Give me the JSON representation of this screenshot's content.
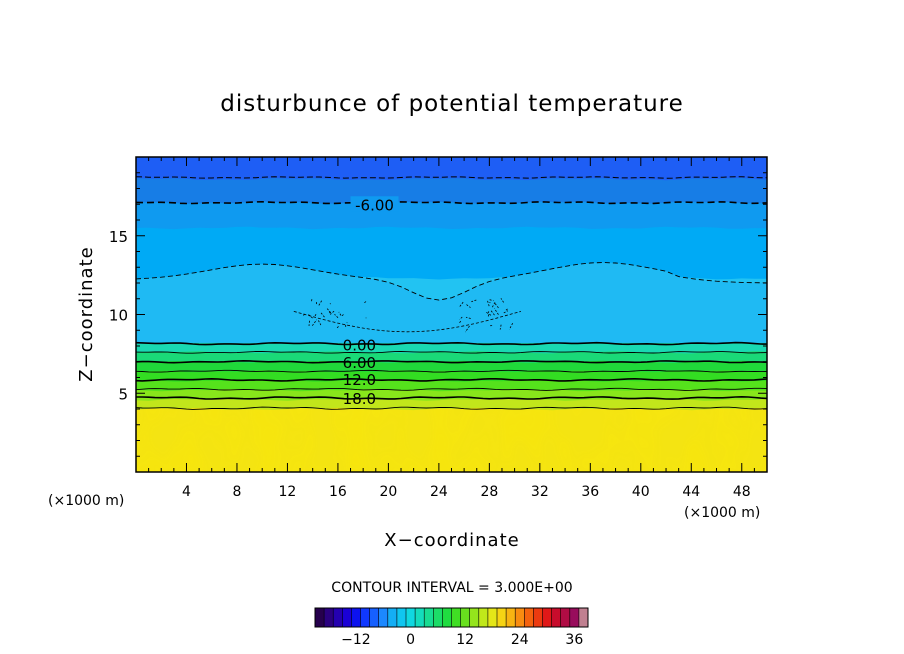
{
  "chart_data": {
    "type": "heatmap",
    "subtype": "filled-contour",
    "title": "disturbunce of potential temperature",
    "xlabel": "X−coordinate",
    "ylabel": "Z−coordinate",
    "x_unit_left": "(×1000 m)",
    "x_unit_right": "(×1000 m)",
    "xlim": [
      0,
      50
    ],
    "ylim": [
      0,
      20
    ],
    "x_ticks": [
      4,
      8,
      12,
      16,
      20,
      24,
      28,
      32,
      36,
      40,
      44,
      48
    ],
    "y_ticks": [
      5,
      10,
      15
    ],
    "contour_interval_text": "CONTOUR INTERVAL = 3.000E+00",
    "contour_interval": 3.0,
    "contour_labels": [
      {
        "text": "-6.00",
        "value": -6,
        "x": 18.9,
        "z": 17.0
      },
      {
        "text": "0.00",
        "value": 0,
        "x": 17.7,
        "z": 8.1
      },
      {
        "text": "6.00",
        "value": 6,
        "x": 17.7,
        "z": 7.0
      },
      {
        "text": "12.0",
        "value": 12,
        "x": 17.7,
        "z": 5.9
      },
      {
        "text": "18.0",
        "value": 18,
        "x": 17.7,
        "z": 4.7
      }
    ],
    "bands": [
      {
        "z_top": 20.0,
        "z_bottom": 18.6,
        "value": -9,
        "color": "#1e5ef5"
      },
      {
        "z_top": 18.6,
        "z_bottom": 17.1,
        "value": -7.5,
        "color": "#177de6"
      },
      {
        "z_top": 17.1,
        "z_bottom": 15.5,
        "value": -6,
        "color": "#0f9af0"
      },
      {
        "z_top": 15.5,
        "z_bottom": 12.3,
        "value": -4.5,
        "color": "#00aaf5"
      },
      {
        "z_top": 12.3,
        "z_bottom": 8.2,
        "value": -1.5,
        "color": "#22c3f2"
      },
      {
        "z_top": 8.2,
        "z_bottom": 7.6,
        "value": 1.5,
        "color": "#19d9b2"
      },
      {
        "z_top": 7.6,
        "z_bottom": 7.0,
        "value": 4.5,
        "color": "#1ad978"
      },
      {
        "z_top": 7.0,
        "z_bottom": 6.4,
        "value": 7.5,
        "color": "#20d83a"
      },
      {
        "z_top": 6.4,
        "z_bottom": 5.8,
        "value": 10.5,
        "color": "#33dd22"
      },
      {
        "z_top": 5.8,
        "z_bottom": 5.2,
        "value": 13.5,
        "color": "#55e21c"
      },
      {
        "z_top": 5.2,
        "z_bottom": 4.6,
        "value": 16.5,
        "color": "#88e61b"
      },
      {
        "z_top": 4.6,
        "z_bottom": 4.0,
        "value": 19.5,
        "color": "#c2e61b"
      },
      {
        "z_top": 4.0,
        "z_bottom": 0.0,
        "value": 22.5,
        "color": "#f4e412"
      }
    ],
    "colorbar": {
      "min": -21,
      "max": 39,
      "step": 3,
      "ticks": [
        -12,
        0,
        12,
        24,
        36
      ],
      "colors": [
        "#26004d",
        "#2a0080",
        "#2400b0",
        "#1a00d6",
        "#0c12ef",
        "#1038ff",
        "#1660ff",
        "#1c88ff",
        "#14aef5",
        "#10c6f0",
        "#10d8e0",
        "#14dcbc",
        "#18dc92",
        "#1cdc68",
        "#20dc40",
        "#40de24",
        "#68e01e",
        "#94e41c",
        "#c0e81a",
        "#e4e618",
        "#f6d414",
        "#f8b412",
        "#f88c10",
        "#f4620e",
        "#ec3a10",
        "#e01818",
        "#c80c2c",
        "#b00c44",
        "#980c5c",
        "#c08090"
      ]
    }
  }
}
